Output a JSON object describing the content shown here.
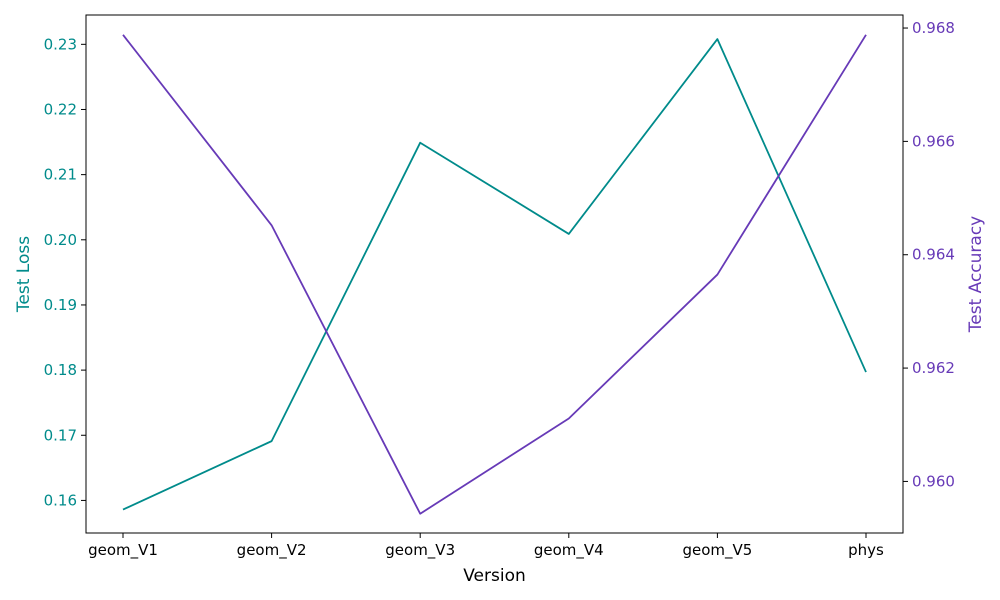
{
  "chart_data": {
    "type": "line",
    "xlabel": "Version",
    "categories": [
      "geom_V1",
      "geom_V2",
      "geom_V3",
      "geom_V4",
      "geom_V5",
      "phys"
    ],
    "left_axis": {
      "label": "Test Loss",
      "color": "#008b8b",
      "ylim": [
        0.155,
        0.2345
      ],
      "ticks": [
        "0.16",
        "0.17",
        "0.18",
        "0.19",
        "0.20",
        "0.21",
        "0.22",
        "0.23"
      ],
      "values": [
        0.1586,
        0.1691,
        0.2149,
        0.2009,
        0.2308,
        0.1797
      ]
    },
    "right_axis": {
      "label": "Test Accuracy",
      "color": "#673ab7",
      "ylim": [
        0.95909,
        0.96823
      ],
      "ticks": [
        "0.960",
        "0.962",
        "0.964",
        "0.966",
        "0.968"
      ],
      "values": [
        0.96788,
        0.96452,
        0.95943,
        0.96111,
        0.96365,
        0.96788
      ]
    },
    "grid": false
  }
}
